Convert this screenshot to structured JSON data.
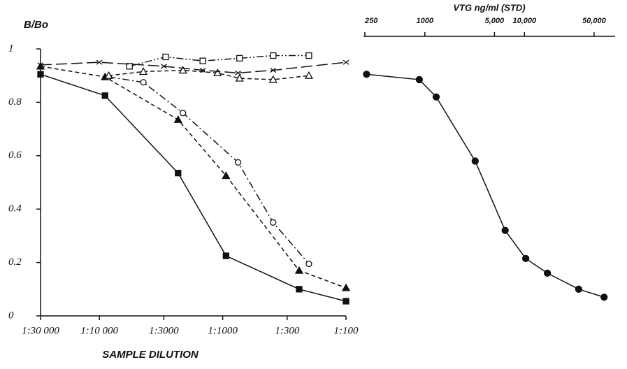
{
  "chart_data": [
    {
      "type": "line",
      "y_label": "B/Bo",
      "x_label": "SAMPLE DILUTION",
      "log_x": true,
      "xlim": [
        30000,
        100
      ],
      "ylim": [
        0,
        1
      ],
      "yticks": [
        0,
        0.2,
        0.4,
        0.6,
        0.8,
        1
      ],
      "xticks": [
        {
          "value": 30000,
          "label": "1:30 000"
        },
        {
          "value": 10000,
          "label": "1:10 000"
        },
        {
          "value": 3000,
          "label": "1:3000"
        },
        {
          "value": 1000,
          "label": "1:1000"
        },
        {
          "value": 300,
          "label": "1:300"
        },
        {
          "value": 100,
          "label": "1:100"
        }
      ],
      "series": [
        {
          "marker": "filled-square",
          "dash": "solid",
          "color": "#111",
          "x": [
            30000,
            9000,
            2300,
            940,
            240,
            100
          ],
          "values": [
            0.905,
            0.825,
            0.535,
            0.225,
            0.1,
            0.055
          ]
        },
        {
          "marker": "filled-triangle",
          "dash": "dashed",
          "color": "#111",
          "x": [
            30000,
            9000,
            2300,
            940,
            240,
            100
          ],
          "values": [
            0.935,
            0.895,
            0.735,
            0.525,
            0.17,
            0.105
          ]
        },
        {
          "marker": "open-circle",
          "dash": "dash-dot",
          "color": "#111",
          "x": [
            8400,
            4400,
            2100,
            750,
            390,
            200
          ],
          "values": [
            0.895,
            0.875,
            0.76,
            0.575,
            0.35,
            0.195
          ]
        },
        {
          "marker": "open-square",
          "dash": "dash-dot-dot",
          "color": "#111",
          "x": [
            5700,
            2900,
            1450,
            730,
            390,
            200
          ],
          "values": [
            0.935,
            0.97,
            0.955,
            0.965,
            0.975,
            0.975
          ]
        },
        {
          "marker": "open-triangle",
          "dash": "dashed",
          "color": "#111",
          "x": [
            8400,
            4400,
            2100,
            1100,
            730,
            390,
            200
          ],
          "values": [
            0.9,
            0.915,
            0.92,
            0.91,
            0.89,
            0.885,
            0.9
          ]
        },
        {
          "marker": "cross",
          "dash": "long-dash",
          "color": "#111",
          "x": [
            30000,
            10000,
            3000,
            1450,
            750,
            390,
            100
          ],
          "values": [
            0.94,
            0.95,
            0.935,
            0.92,
            0.91,
            0.92,
            0.95
          ]
        }
      ]
    },
    {
      "type": "line",
      "x_label": "VTG ng/ml (STD)",
      "log_x": true,
      "xlim": [
        250,
        80000
      ],
      "ylim": [
        0,
        1
      ],
      "xticks": [
        250,
        1000,
        {
          "value": 5000,
          "label": "5,000"
        },
        {
          "value": 10000,
          "label": "10,000"
        },
        {
          "value": 50000,
          "label": "50,000"
        }
      ],
      "series": [
        {
          "marker": "filled-circle",
          "dash": "solid",
          "color": "#111",
          "x": [
            260,
            880,
            1300,
            3200,
            6400,
            10300,
            17000,
            35000,
            63000
          ],
          "values": [
            0.905,
            0.885,
            0.82,
            0.58,
            0.32,
            0.215,
            0.16,
            0.1,
            0.07
          ]
        }
      ]
    }
  ]
}
